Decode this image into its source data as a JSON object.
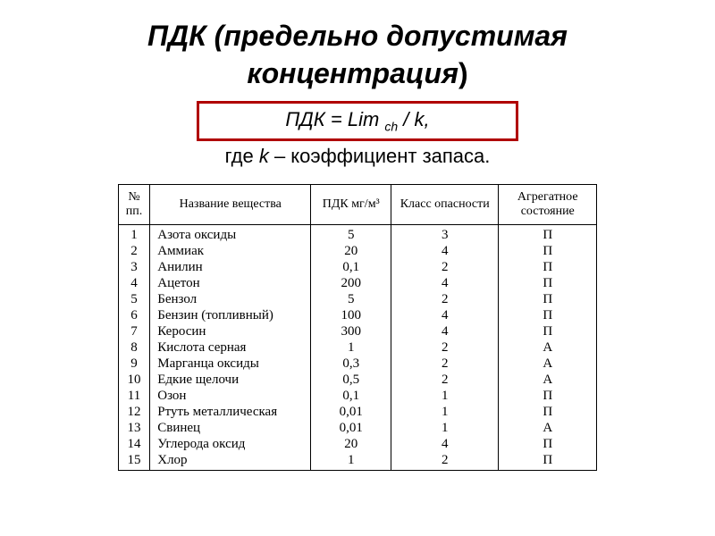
{
  "title": {
    "line1": "ПДК (предельно допустимая",
    "line2": "концентрация",
    "closing_paren": ")",
    "fontsize": 32,
    "color": "#000000"
  },
  "formula": {
    "box_border_color": "#b00000",
    "box_border_width": 3,
    "text_pdk": "ПДК = Lim ",
    "sub": "ch",
    "text_after": " / k,",
    "desc_prefix": "где ",
    "desc_k": "k",
    "desc_rest": " – коэффициент запаса."
  },
  "table": {
    "columns": {
      "num": "№\nпп.",
      "name": "Название вещества",
      "pdk": "ПДК мг/м³",
      "klass": "Класс опасности",
      "state": "Агрегатное\nсостояние"
    },
    "rows": [
      {
        "n": "1",
        "name": "Азота оксиды",
        "pdk": "5",
        "klass": "3",
        "state": "П"
      },
      {
        "n": "2",
        "name": "Аммиак",
        "pdk": "20",
        "klass": "4",
        "state": "П"
      },
      {
        "n": "3",
        "name": "Анилин",
        "pdk": "0,1",
        "klass": "2",
        "state": "П"
      },
      {
        "n": "4",
        "name": "Ацетон",
        "pdk": "200",
        "klass": "4",
        "state": "П"
      },
      {
        "n": "5",
        "name": "Бензол",
        "pdk": "5",
        "klass": "2",
        "state": "П"
      },
      {
        "n": "6",
        "name": "Бензин (топливный)",
        "pdk": "100",
        "klass": "4",
        "state": "П"
      },
      {
        "n": "7",
        "name": "Керосин",
        "pdk": "300",
        "klass": "4",
        "state": "П"
      },
      {
        "n": "8",
        "name": "Кислота серная",
        "pdk": "1",
        "klass": "2",
        "state": "А"
      },
      {
        "n": "9",
        "name": "Марганца оксиды",
        "pdk": "0,3",
        "klass": "2",
        "state": "А"
      },
      {
        "n": "10",
        "name": "Едкие щелочи",
        "pdk": "0,5",
        "klass": "2",
        "state": "А"
      },
      {
        "n": "11",
        "name": "Озон",
        "pdk": "0,1",
        "klass": "1",
        "state": "П"
      },
      {
        "n": "12",
        "name": "Ртуть металлическая",
        "pdk": "0,01",
        "klass": "1",
        "state": "П"
      },
      {
        "n": "13",
        "name": "Свинец",
        "pdk": "0,01",
        "klass": "1",
        "state": "А"
      },
      {
        "n": "14",
        "name": "Углерода оксид",
        "pdk": "20",
        "klass": "4",
        "state": "П"
      },
      {
        "n": "15",
        "name": "Хлор",
        "pdk": "1",
        "klass": "2",
        "state": "П"
      }
    ],
    "border_color": "#000000",
    "font_family": "Times New Roman"
  }
}
